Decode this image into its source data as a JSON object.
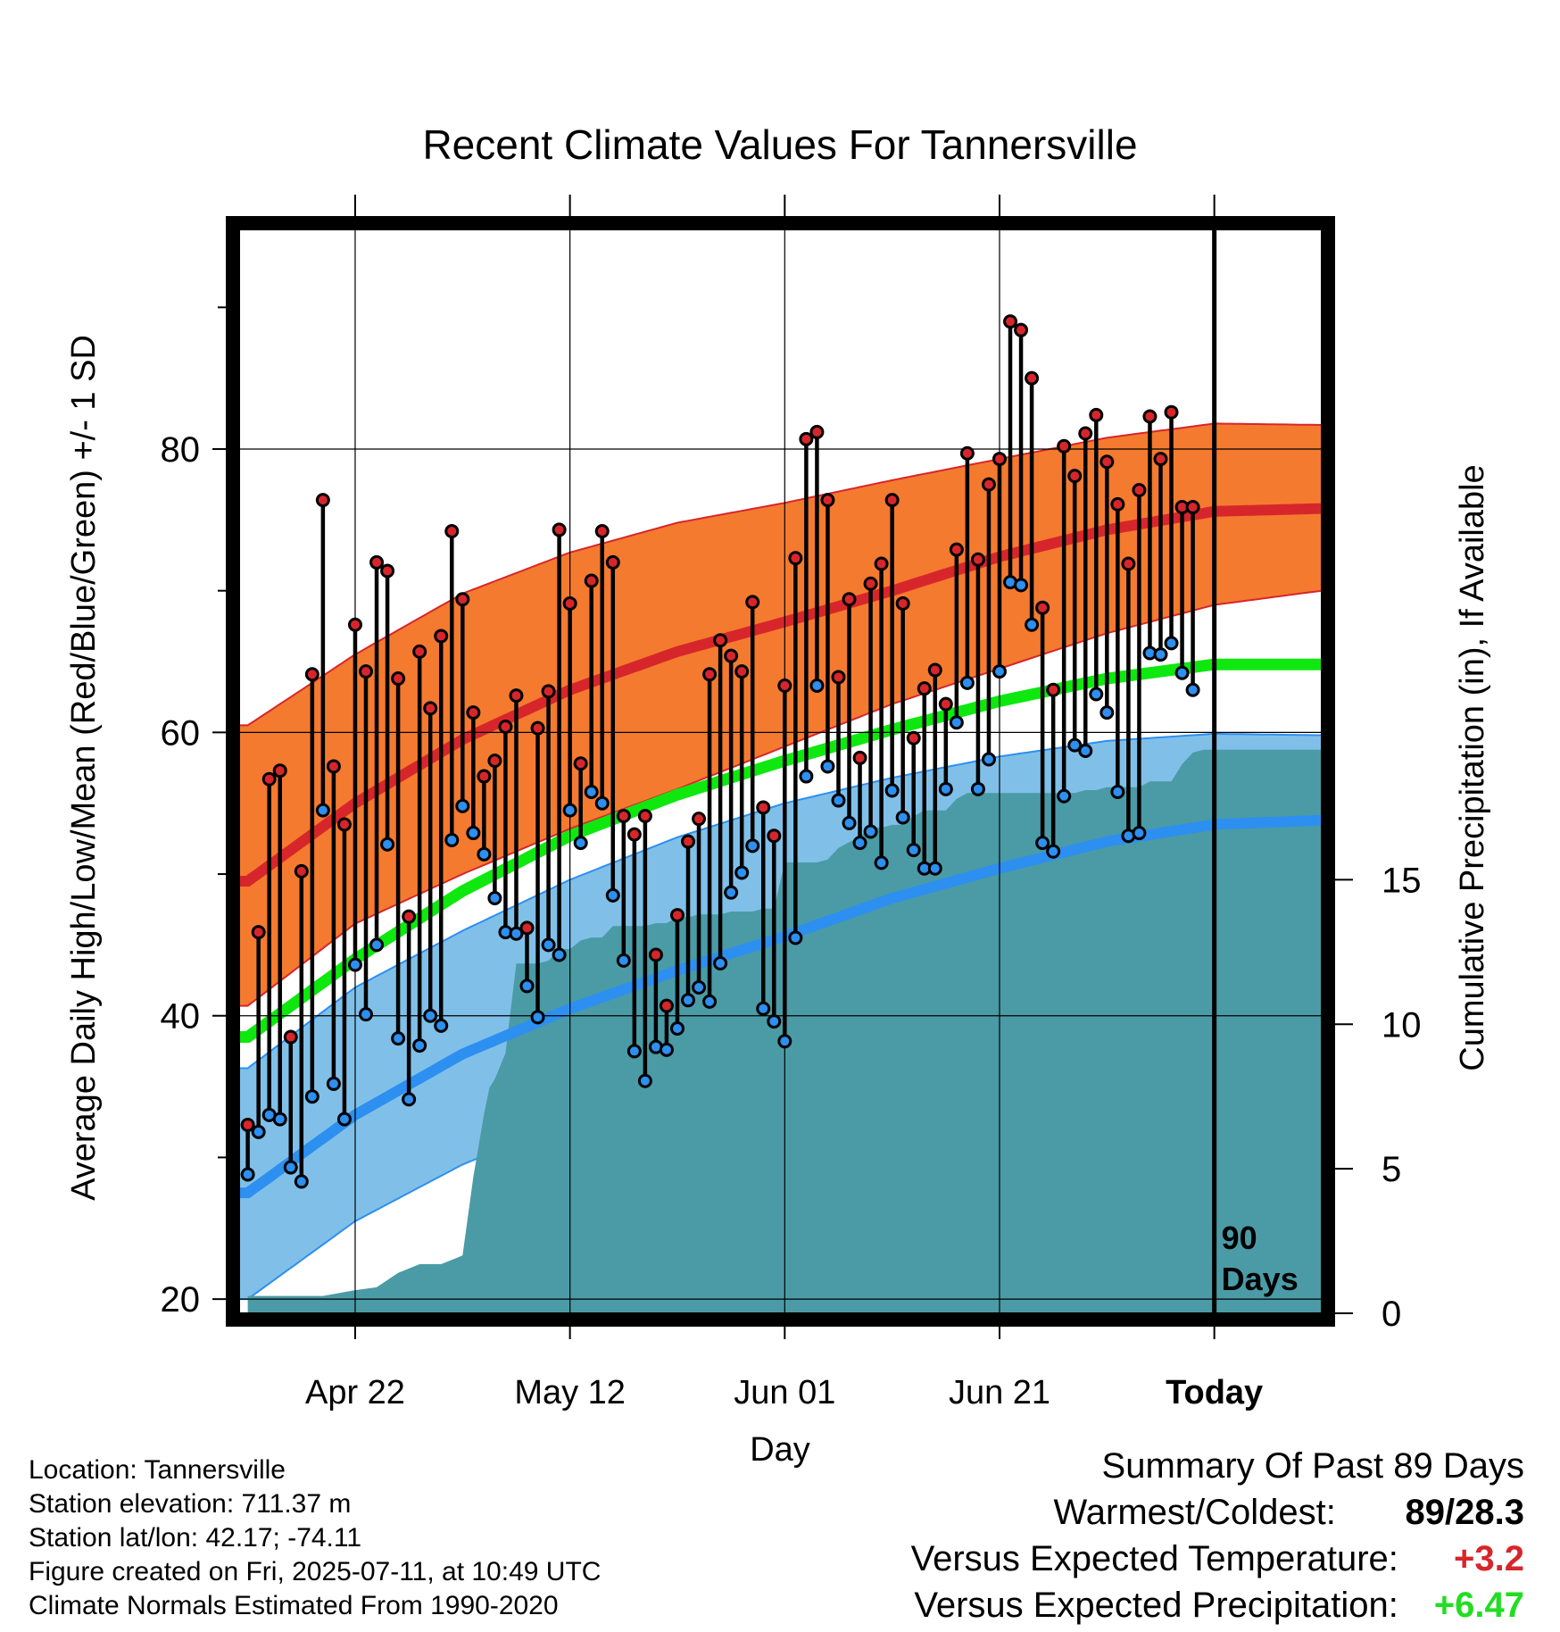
{
  "chart_data": {
    "type": "line",
    "title": "Recent Climate Values For Tannersville",
    "xlabel": "Day",
    "ylabel": "Average Daily High/Low/Mean (Red/Blue/Green) +/- 1 SD",
    "y2label": "Cumulative Precipitation (in), If Available",
    "x_tick_labels": [
      "Apr 22",
      "May 12",
      "Jun 01",
      "Jun 21",
      "Today"
    ],
    "x_tick_days": [
      10,
      30,
      50,
      70,
      90
    ],
    "xlim": [
      -0.8,
      100
    ],
    "ylim": [
      19,
      95.5
    ],
    "y_ticks": [
      20,
      40,
      60,
      80
    ],
    "y2_ticks": [
      0,
      5,
      10,
      15
    ],
    "y2lim": [
      0,
      37.5
    ],
    "today_day": 90,
    "today_label": [
      "90",
      "Days"
    ],
    "grid": true,
    "normals": {
      "days": [
        0,
        10,
        20,
        30,
        40,
        50,
        60,
        70,
        80,
        90,
        100
      ],
      "high_mean": [
        49.5,
        55.0,
        59.5,
        63.0,
        65.7,
        67.8,
        70.0,
        72.4,
        74.3,
        75.6,
        75.8
      ],
      "high_upper": [
        60.5,
        65.5,
        69.8,
        72.7,
        74.8,
        76.2,
        77.8,
        79.3,
        80.8,
        81.8,
        81.7
      ],
      "high_lower": [
        40.7,
        46.5,
        50.0,
        53.2,
        56.0,
        59.0,
        62.0,
        64.5,
        67.0,
        69.0,
        70.0
      ],
      "mean": [
        38.5,
        44.0,
        48.8,
        52.7,
        55.6,
        58.0,
        60.2,
        62.2,
        63.8,
        64.8,
        64.8
      ],
      "low_mean": [
        27.5,
        33.0,
        37.3,
        40.5,
        43.2,
        45.6,
        48.3,
        50.4,
        52.3,
        53.5,
        53.8
      ],
      "low_upper": [
        36.3,
        42.0,
        46.0,
        49.6,
        52.6,
        55.0,
        56.8,
        58.3,
        59.4,
        59.9,
        59.8
      ],
      "low_lower": [
        20.0,
        25.5,
        29.5,
        32.6,
        35.7,
        38.5,
        41.0,
        43.6,
        45.7,
        47.6,
        48.5
      ]
    },
    "precipitation": {
      "days": [
        0,
        7,
        10,
        12,
        14,
        16,
        18,
        20,
        21,
        22,
        22.5,
        23,
        24,
        25,
        26,
        27,
        28,
        29,
        30,
        31,
        32,
        33,
        34,
        35,
        36,
        37,
        38,
        39,
        40,
        41,
        42,
        43,
        44,
        45,
        46,
        47,
        48,
        49,
        50,
        51,
        52,
        53,
        54,
        55,
        56,
        57,
        58,
        59,
        60,
        61,
        62,
        63,
        64,
        65,
        66,
        67,
        68,
        69,
        70,
        71,
        72,
        73,
        74,
        75,
        76,
        77,
        78,
        79,
        80,
        81,
        82,
        83,
        84,
        85,
        86,
        87,
        88,
        89,
        90,
        100
      ],
      "values": [
        0.6,
        0.6,
        0.8,
        0.9,
        1.4,
        1.7,
        1.7,
        2.0,
        4.7,
        6.9,
        7.8,
        8.1,
        9.0,
        12.1,
        12.1,
        12.1,
        12.2,
        12.6,
        12.6,
        12.9,
        13.0,
        13.0,
        13.4,
        13.4,
        13.4,
        13.4,
        13.5,
        13.5,
        13.7,
        13.7,
        13.8,
        13.8,
        13.8,
        13.9,
        13.9,
        13.9,
        14.0,
        14.0,
        15.6,
        15.6,
        15.6,
        15.6,
        15.7,
        16.1,
        16.3,
        16.5,
        16.8,
        16.8,
        16.9,
        16.9,
        17.2,
        17.4,
        17.4,
        17.4,
        17.8,
        18.0,
        18.0,
        18.0,
        18.0,
        18.0,
        18.0,
        18.0,
        18.0,
        18.0,
        18.0,
        18.0,
        18.1,
        18.1,
        18.2,
        18.2,
        18.2,
        18.2,
        18.4,
        18.4,
        18.4,
        19.0,
        19.4,
        19.5,
        19.5,
        19.5
      ]
    },
    "series": [
      {
        "name": "Daily High",
        "values": [
          32.3,
          45.9,
          56.7,
          57.3,
          38.5,
          50.2,
          64.1,
          76.4,
          57.6,
          53.5,
          67.6,
          64.3,
          72.0,
          71.4,
          63.8,
          47.0,
          65.7,
          61.7,
          66.8,
          74.2,
          69.4,
          61.4,
          56.9,
          58.0,
          60.4,
          62.6,
          46.2,
          60.3,
          62.9,
          74.3,
          69.1,
          57.8,
          70.7,
          74.2,
          72.0,
          54.1,
          52.8,
          54.1,
          44.3,
          40.7,
          47.1,
          52.3,
          53.9,
          64.1,
          66.5,
          65.4,
          64.3,
          69.2,
          54.7,
          52.7,
          63.3,
          72.3,
          80.7,
          81.2,
          76.4,
          63.9,
          69.4,
          58.2,
          70.5,
          71.9,
          76.4,
          69.1,
          59.6,
          63.1,
          64.4,
          62.0,
          72.9,
          79.7,
          72.2,
          77.5,
          79.3,
          89.0,
          88.4,
          85.0,
          68.8,
          63.0,
          80.2,
          78.1,
          81.1,
          82.4,
          79.1,
          76.1,
          71.9,
          77.1,
          82.3,
          79.3,
          82.6,
          75.9,
          75.9
        ]
      },
      {
        "name": "Daily Low",
        "values": [
          28.8,
          31.8,
          33.0,
          32.7,
          29.3,
          28.3,
          34.3,
          54.5,
          35.2,
          32.7,
          43.6,
          40.1,
          45.0,
          52.1,
          38.4,
          34.1,
          37.9,
          40.0,
          39.3,
          52.4,
          54.8,
          52.9,
          51.4,
          48.3,
          45.9,
          45.8,
          42.1,
          39.9,
          45.0,
          44.3,
          54.5,
          52.2,
          55.8,
          55.0,
          48.5,
          43.9,
          37.5,
          35.4,
          37.8,
          37.6,
          39.1,
          41.1,
          42.0,
          41.0,
          43.7,
          48.7,
          50.1,
          52.0,
          40.5,
          39.6,
          38.2,
          45.5,
          56.9,
          63.3,
          57.6,
          55.2,
          53.6,
          52.2,
          53.0,
          50.8,
          55.9,
          54.0,
          51.7,
          50.4,
          50.4,
          56.0,
          60.7,
          63.5,
          56.0,
          58.1,
          64.3,
          70.6,
          70.4,
          67.6,
          52.2,
          51.6,
          55.5,
          59.1,
          58.7,
          62.7,
          61.4,
          55.8,
          52.7,
          52.9,
          65.6,
          65.5,
          66.3,
          64.2,
          63.0
        ]
      }
    ]
  },
  "footer": {
    "location": "Location: Tannersville",
    "elevation": "Station elevation: 711.37 m",
    "latlon": "Station lat/lon: 42.17; -74.11",
    "created": "Figure created on Fri, 2025-07-11, at 10:49 UTC",
    "normals": "Climate Normals Estimated From 1990-2020"
  },
  "summary": {
    "title": "Summary Of Past 89 Days",
    "warm_cold_label": "Warmest/Coldest:",
    "warm_cold_value": "89/28.3",
    "temp_label": "Versus Expected Temperature:",
    "temp_value": "+3.2",
    "precip_label": "Versus Expected Precipitation:",
    "precip_value": "+6.47"
  },
  "colors": {
    "high_band": "#f47a2f",
    "high_line": "#d7262b",
    "mean_line": "#0ee80e",
    "low_band": "#80c0e8",
    "low_line": "#2d8ff0",
    "precip": "#4a9ba6",
    "temp_value": "#d7262b",
    "precip_value": "#22dd22"
  }
}
